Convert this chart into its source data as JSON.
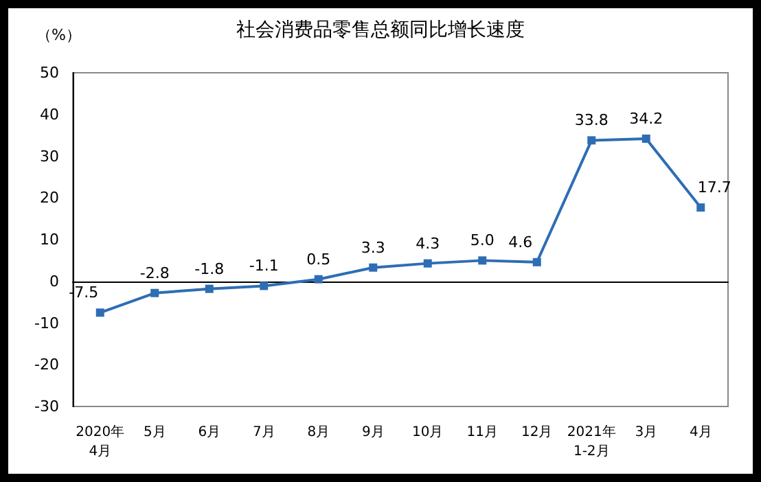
{
  "chart_data": {
    "type": "line",
    "title": "社会消费品零售总额同比增长速度",
    "ylabel": "（%）",
    "categories": [
      "2020年\n4月",
      "5月",
      "6月",
      "7月",
      "8月",
      "9月",
      "10月",
      "11月",
      "12月",
      "2021年\n1-2月",
      "3月",
      "4月"
    ],
    "series": [
      {
        "color": "#2e6db4",
        "values": [
          -7.5,
          -2.8,
          -1.8,
          -1.1,
          0.5,
          3.3,
          4.3,
          5.0,
          4.6,
          33.8,
          34.2,
          17.7
        ],
        "value_labels": [
          "-7.5",
          "-2.8",
          "-1.8",
          "-1.1",
          "0.5",
          "3.3",
          "4.3",
          "5.0",
          "4.6",
          "33.8",
          "34.2",
          "17.7"
        ]
      }
    ],
    "ylim": [
      -30,
      50
    ],
    "yticks": [
      -30,
      -20,
      -10,
      0,
      10,
      20,
      30,
      40,
      50
    ],
    "marker": "square",
    "line_style": "solid"
  }
}
